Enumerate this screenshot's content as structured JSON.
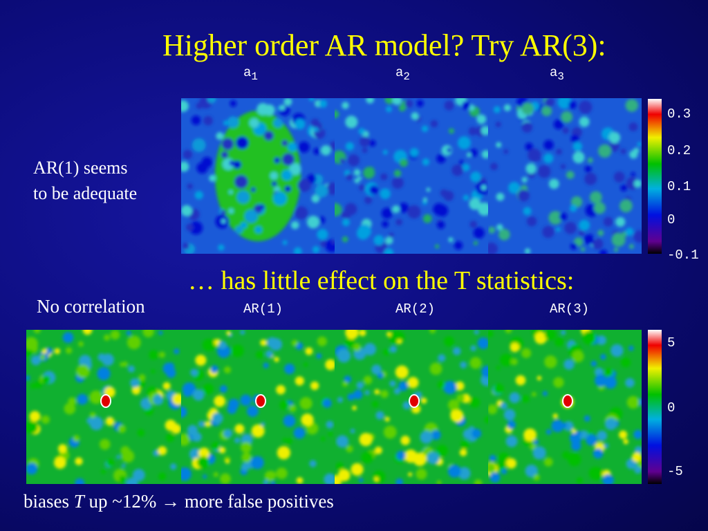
{
  "title": "Higher order AR model? Try AR(3):",
  "top_panel": {
    "columns": [
      {
        "base": "a",
        "sub": "1"
      },
      {
        "base": "a",
        "sub": "2"
      },
      {
        "base": "a",
        "sub": "3"
      }
    ],
    "colorbar_ticks": [
      "0.3",
      "0.2",
      "0.1",
      "0",
      "-0.1"
    ],
    "side_note": [
      "AR(1) seems",
      "to be adequate"
    ]
  },
  "subtitle": "… has little effect on the T statistics:",
  "bottom_panel": {
    "columns": [
      "No correlation",
      "AR(1)",
      "AR(2)",
      "AR(3)"
    ],
    "colorbar_ticks": [
      "5",
      "0",
      "-5"
    ]
  },
  "footer": {
    "before": "biases ",
    "italic": "T",
    "after": " up ~12% → more false positives"
  }
}
